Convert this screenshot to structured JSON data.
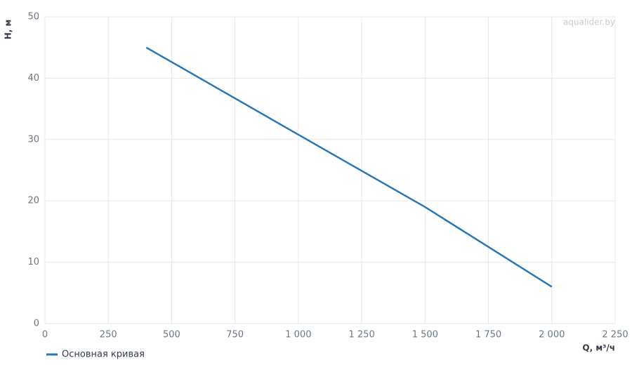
{
  "chart_data": {
    "type": "line",
    "watermark": "aqualider.by",
    "x_label": "Q, м³/ч",
    "y_label": "H, м",
    "x": [
      400,
      1000,
      1500,
      2000
    ],
    "series": [
      {
        "name": "Основная кривая",
        "color": "#2a77b4",
        "values": [
          45,
          30.8,
          19,
          6
        ]
      }
    ],
    "xlim": [
      0,
      2250
    ],
    "xticks": [
      0,
      250,
      500,
      750,
      {
        "value": 1000,
        "label": "1 000"
      },
      {
        "value": 1250,
        "label": "1 250"
      },
      {
        "value": 1500,
        "label": "1 500"
      },
      {
        "value": 1750,
        "label": "1 750"
      },
      {
        "value": 2000,
        "label": "2 000"
      },
      {
        "value": 2250,
        "label": "2 250"
      }
    ],
    "ylim": [
      0,
      50
    ],
    "yticks": [
      0,
      10,
      20,
      30,
      40,
      50
    ],
    "grid": true,
    "legend": "bottom-left"
  }
}
